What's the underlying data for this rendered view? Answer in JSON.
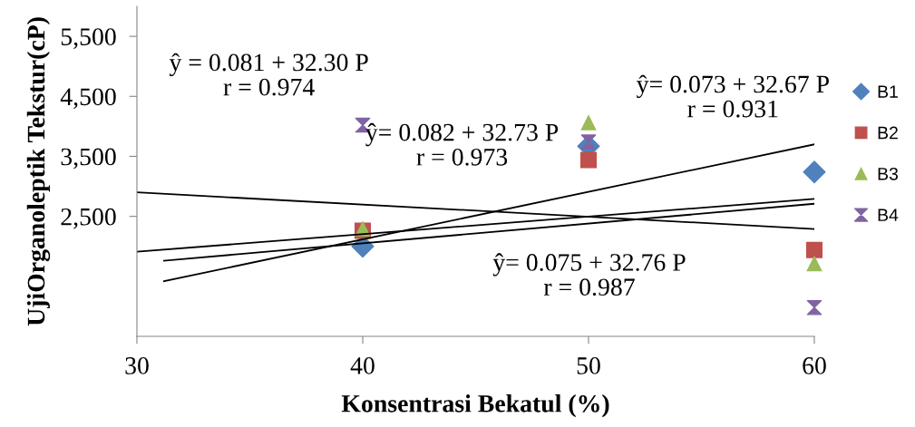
{
  "chart_data": {
    "type": "scatter",
    "xlabel": "Konsentrasi Bekatul (%)",
    "ylabel": "UjiOrganoleptik Tekstur(cP)",
    "xlim": [
      30,
      60
    ],
    "xticks": [
      30,
      40,
      50,
      60
    ],
    "ylim": [
      500,
      6000
    ],
    "yticks": [
      {
        "value": 2500,
        "label": "2,500"
      },
      {
        "value": 3500,
        "label": "3,500"
      },
      {
        "value": 4500,
        "label": "4,500"
      },
      {
        "value": 5500,
        "label": "5,500"
      }
    ],
    "grid": false,
    "legend": "right",
    "series": [
      {
        "name": "B1",
        "color": "#4f81bd",
        "marker": "diamond",
        "x": [
          40,
          50,
          60
        ],
        "values": [
          2000,
          3670,
          3240
        ]
      },
      {
        "name": "B2",
        "color": "#c0504d",
        "marker": "square",
        "x": [
          40,
          50,
          60
        ],
        "values": [
          2260,
          3440,
          1940
        ]
      },
      {
        "name": "B3",
        "color": "#9bbb59",
        "marker": "triangle",
        "x": [
          40,
          50,
          60
        ],
        "values": [
          2290,
          4060,
          1710
        ]
      },
      {
        "name": "B4",
        "color": "#8064a2",
        "x": [
          40,
          50,
          60
        ],
        "values": [
          4020,
          3740,
          980
        ]
      },
      {
        "type": "line",
        "color": "#000000",
        "marker": "none",
        "x": [
          30,
          60
        ],
        "values": [
          2900,
          2290
        ]
      },
      {
        "type": "line",
        "color": "#000000",
        "marker": "none",
        "x": [
          30,
          60
        ],
        "values": [
          1910,
          2790
        ]
      },
      {
        "type": "line",
        "color": "#000000",
        "marker": "none",
        "x": [
          31.2,
          60
        ],
        "values": [
          1760,
          2710
        ]
      },
      {
        "type": "line",
        "color": "#000000",
        "marker": "none",
        "x": [
          31.2,
          60
        ],
        "values": [
          1420,
          3700
        ]
      }
    ],
    "annotations": [
      "ŷ = 0.081 + 32.30 P\nr = 0.974",
      "ŷ= 0.082 + 32.73 P\nr = 0.973",
      "ŷ= 0.073 + 32.67 P\nr = 0.931",
      "ŷ= 0.075 + 32.76 P\nr = 0.987"
    ]
  }
}
